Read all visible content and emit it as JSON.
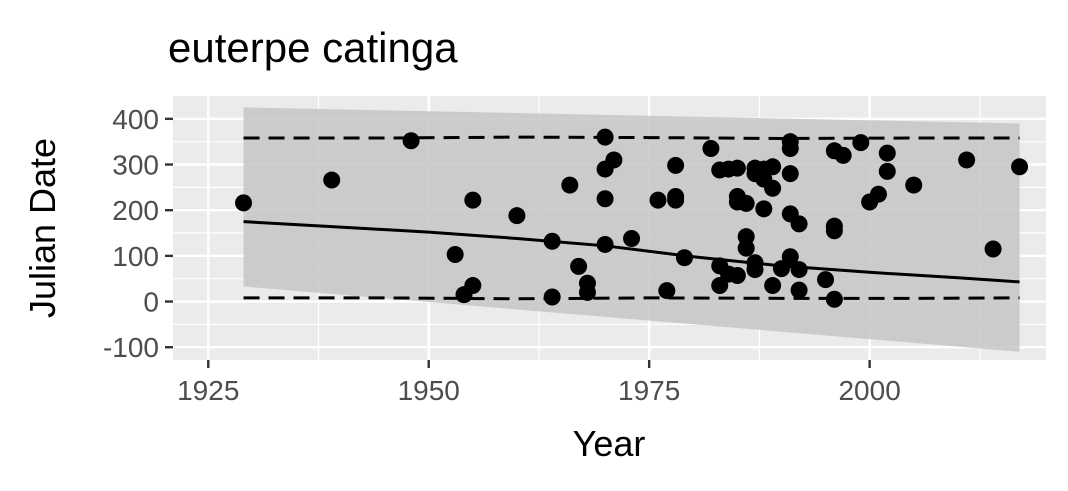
{
  "chart_data": {
    "type": "scatter",
    "title": "euterpe catinga",
    "xlabel": "Year",
    "ylabel": "Julian Date",
    "xlim": [
      1921,
      2020
    ],
    "ylim": [
      -128,
      450
    ],
    "x_ticks": [
      1925,
      1950,
      1975,
      2000
    ],
    "x_tick_labels": [
      "1925",
      "1950",
      "1975",
      "2000"
    ],
    "y_ticks": [
      -100,
      0,
      100,
      200,
      300,
      400
    ],
    "y_tick_labels": [
      "-100",
      "0",
      "100",
      "200",
      "300",
      "400"
    ],
    "grid": true,
    "legend": "none",
    "colors": {
      "panel": "#ebebeb",
      "grid": "#ffffff",
      "points": "#000000",
      "ribbon": "#c6c6c6",
      "line": "#000000"
    },
    "points": {
      "x": [
        1929,
        1939,
        1948,
        1953,
        1954,
        1955,
        1955,
        1960,
        1964,
        1964,
        1966,
        1967,
        1968,
        1968,
        1970,
        1970,
        1970,
        1970,
        1971,
        1973,
        1976,
        1977,
        1978,
        1978,
        1978,
        1979,
        1982,
        1983,
        1983,
        1983,
        1984,
        1984,
        1985,
        1985,
        1985,
        1985,
        1986,
        1986,
        1986,
        1987,
        1987,
        1987,
        1987,
        1988,
        1988,
        1988,
        1989,
        1989,
        1989,
        1990,
        1991,
        1991,
        1991,
        1991,
        1991,
        1992,
        1992,
        1992,
        1995,
        1996,
        1996,
        1996,
        1996,
        1997,
        1999,
        2000,
        2001,
        2002,
        2002,
        2005,
        2011,
        2014,
        2017
      ],
      "y": [
        216,
        266,
        352,
        103,
        15,
        35,
        222,
        188,
        132,
        10,
        255,
        77,
        40,
        20,
        360,
        290,
        225,
        125,
        310,
        138,
        222,
        24,
        222,
        230,
        298,
        96,
        335,
        288,
        78,
        35,
        290,
        60,
        292,
        230,
        218,
        57,
        215,
        142,
        117,
        292,
        280,
        85,
        70,
        268,
        290,
        203,
        295,
        248,
        35,
        72,
        350,
        335,
        280,
        192,
        98,
        170,
        70,
        25,
        48,
        330,
        165,
        155,
        5,
        320,
        348,
        218,
        235,
        325,
        285,
        255,
        310,
        115,
        295
      ]
    },
    "trend": {
      "x": [
        1929,
        1940,
        1950,
        1960,
        1970,
        1980,
        1990,
        2000,
        2010,
        2017
      ],
      "y": [
        175,
        163,
        152,
        138,
        122,
        98,
        78,
        64,
        52,
        43
      ]
    },
    "ribbon": {
      "x": [
        1929,
        2017
      ],
      "upper": [
        425,
        390
      ],
      "lower": [
        33,
        -110
      ]
    },
    "dashed_upper": {
      "x": [
        1929,
        1945,
        1960,
        1975,
        1990,
        2005,
        2017
      ],
      "y": [
        358,
        358,
        360,
        359,
        357,
        358,
        358
      ]
    },
    "dashed_lower": {
      "x": [
        1929,
        1945,
        1960,
        1975,
        1990,
        2005,
        2017
      ],
      "y": [
        8,
        8,
        6,
        8,
        7,
        7,
        8
      ]
    }
  }
}
